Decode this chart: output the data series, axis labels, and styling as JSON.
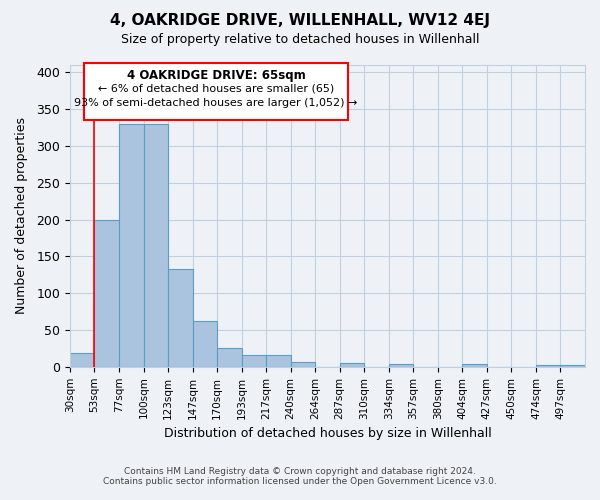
{
  "title": "4, OAKRIDGE DRIVE, WILLENHALL, WV12 4EJ",
  "subtitle": "Size of property relative to detached houses in Willenhall",
  "xlabel": "Distribution of detached houses by size in Willenhall",
  "ylabel": "Number of detached properties",
  "bar_labels": [
    "30sqm",
    "53sqm",
    "77sqm",
    "100sqm",
    "123sqm",
    "147sqm",
    "170sqm",
    "193sqm",
    "217sqm",
    "240sqm",
    "264sqm",
    "287sqm",
    "310sqm",
    "334sqm",
    "357sqm",
    "380sqm",
    "404sqm",
    "427sqm",
    "450sqm",
    "474sqm",
    "497sqm"
  ],
  "bar_heights": [
    19,
    200,
    330,
    330,
    133,
    62,
    26,
    16,
    16,
    7,
    0,
    5,
    0,
    4,
    0,
    0,
    4,
    0,
    0,
    3,
    3
  ],
  "bar_color": "#aac4e0",
  "bar_edge_color": "#5a9ec8",
  "ylim": [
    0,
    410
  ],
  "yticks": [
    0,
    50,
    100,
    150,
    200,
    250,
    300,
    350,
    400
  ],
  "red_line_x": 1.0,
  "annotation_title": "4 OAKRIDGE DRIVE: 65sqm",
  "annotation_line1": "← 6% of detached houses are smaller (65)",
  "annotation_line2": "93% of semi-detached houses are larger (1,052) →",
  "footer1": "Contains HM Land Registry data © Crown copyright and database right 2024.",
  "footer2": "Contains public sector information licensed under the Open Government Licence v3.0.",
  "bg_color": "#eef2f7",
  "plot_bg_color": "#eef2f7",
  "grid_color": "#c0d0e0"
}
